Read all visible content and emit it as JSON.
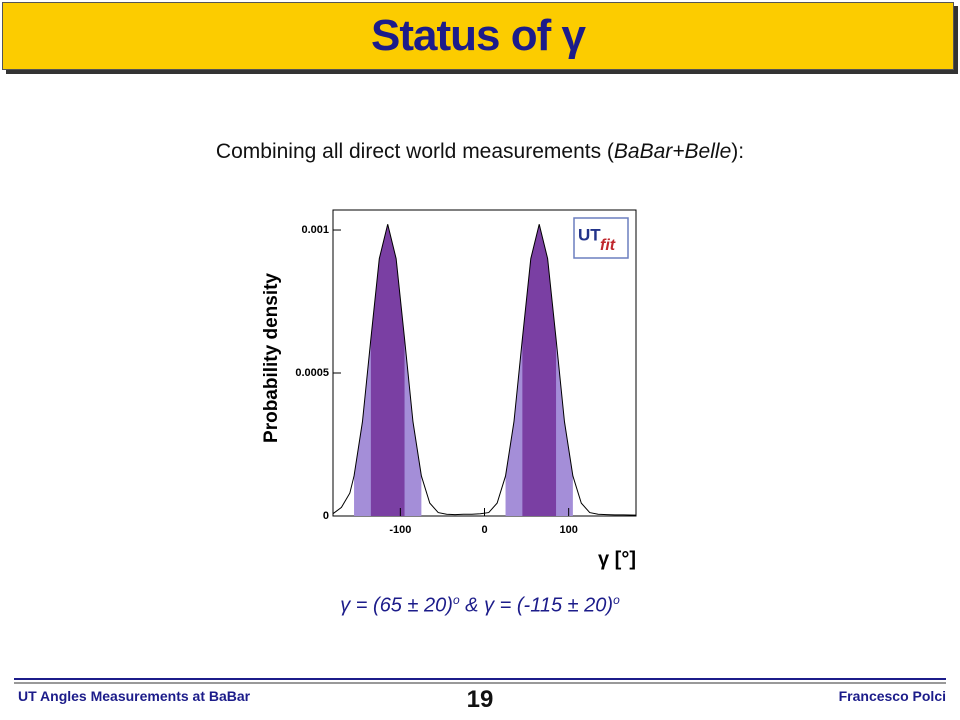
{
  "header": {
    "title": "Status of γ"
  },
  "intro": [
    "Combining all direct world measurements (",
    "BaBar+Belle",
    "):"
  ],
  "result": [
    "γ = (65 ± 20)",
    "o",
    " & ",
    "γ = (-115 ± 20)",
    "o"
  ],
  "footer": {
    "left": "UT Angles Measurements at BaBar",
    "page": "19",
    "right": "Francesco Polci"
  },
  "chart_data": {
    "type": "area",
    "y_label": "Probability density",
    "x_label": "γ [°]",
    "logo": [
      "UT",
      "fit"
    ],
    "x": [
      -180,
      -170,
      -160,
      -155,
      -145,
      -135,
      -125,
      -115,
      -105,
      -95,
      -85,
      -75,
      -65,
      -55,
      -45,
      -35,
      -25,
      -15,
      -5,
      5,
      15,
      25,
      35,
      45,
      55,
      65,
      75,
      85,
      95,
      105,
      115,
      125,
      135,
      145,
      155,
      165,
      180
    ],
    "values": [
      8e-06,
      3e-05,
      8e-05,
      0.00014,
      0.00033,
      0.00062,
      0.0009,
      0.00102,
      0.0009,
      0.00062,
      0.00033,
      0.00014,
      4.5e-05,
      1.2e-05,
      6e-06,
      5e-06,
      6e-06,
      6e-06,
      8e-06,
      1.2e-05,
      4.5e-05,
      0.00014,
      0.00033,
      0.00062,
      0.0009,
      0.00102,
      0.0009,
      0.00062,
      0.00033,
      0.00014,
      4.5e-05,
      1.2e-05,
      6e-06,
      5e-06,
      4e-06,
      4e-06,
      3e-06
    ],
    "color": "#000000",
    "bands": [
      {
        "from": -155,
        "to": -75,
        "color": "#a48ed8"
      },
      {
        "from": 25,
        "to": 105,
        "color": "#a48ed8"
      },
      {
        "from": -135,
        "to": -95,
        "color": "#7a3fa3"
      },
      {
        "from": 45,
        "to": 85,
        "color": "#7a3fa3"
      }
    ],
    "xlim": [
      -180,
      180
    ],
    "xticks": [
      -100,
      0,
      100
    ],
    "ylim": [
      0,
      0.00107
    ],
    "yticks": [
      0,
      0.0005,
      0.001
    ]
  }
}
